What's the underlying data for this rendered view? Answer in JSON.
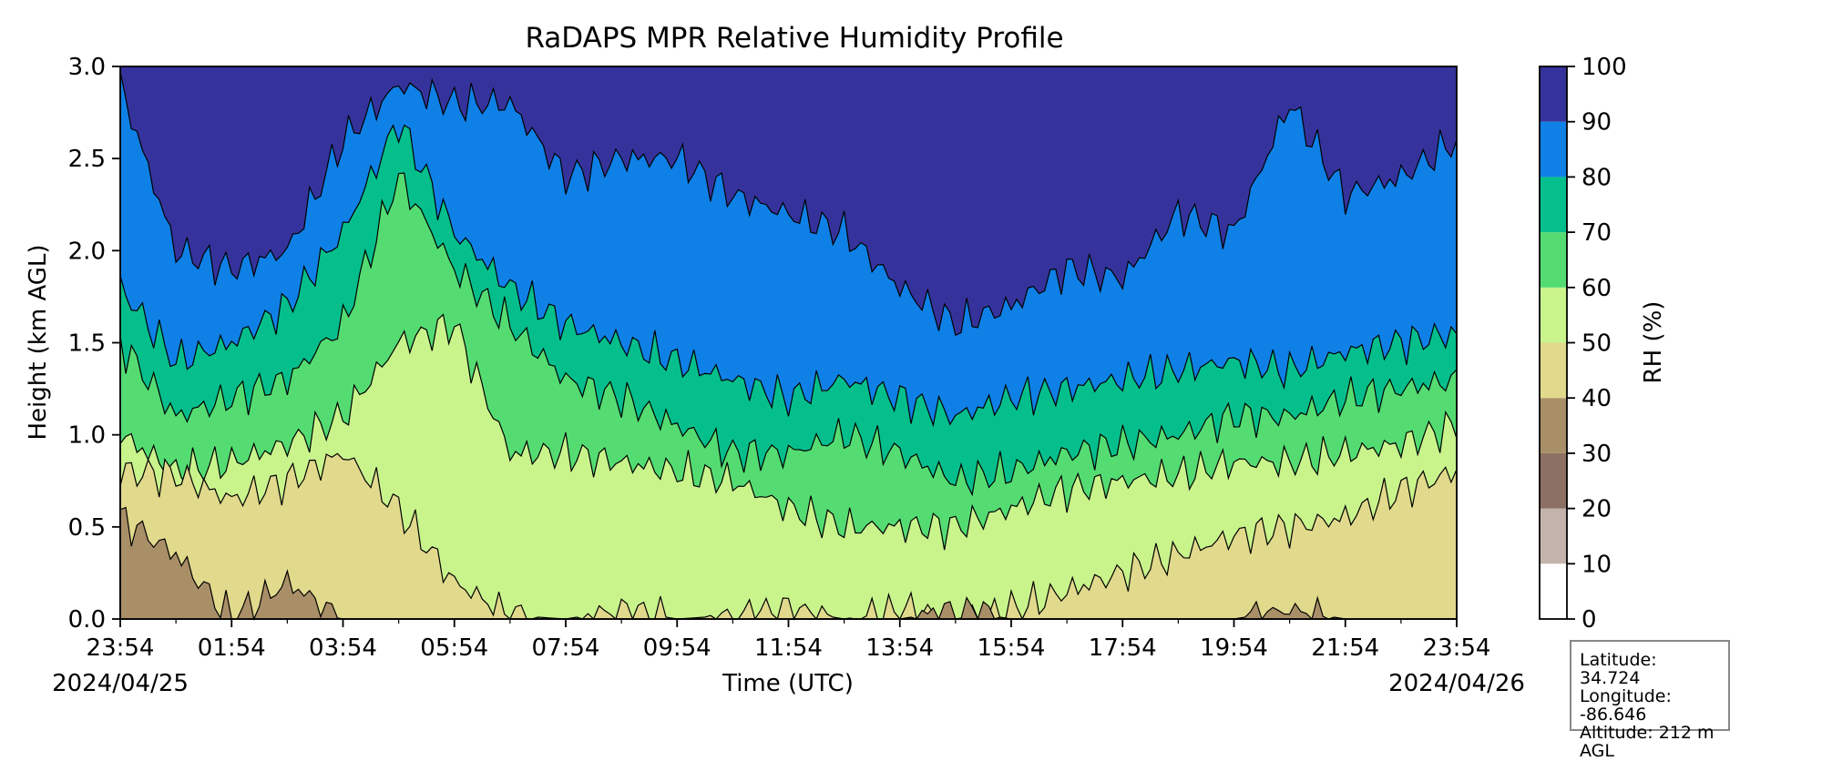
{
  "chart_data": {
    "type": "heatmap",
    "subtype": "filled-contour time-height profile",
    "title": "RaDAPS MPR Relative Humidity Profile",
    "xlabel": "Time (UTC)",
    "ylabel": "Height (km AGL)",
    "x_ticks": [
      "23:54",
      "01:54",
      "03:54",
      "05:54",
      "07:54",
      "09:54",
      "11:54",
      "13:54",
      "15:54",
      "17:54",
      "19:54",
      "21:54",
      "23:54"
    ],
    "x_start_date": "2024/04/25",
    "x_end_date": "2024/04/26",
    "y_ticks": [
      "0.0",
      "0.5",
      "1.0",
      "1.5",
      "2.0",
      "2.5",
      "3.0"
    ],
    "ylim": [
      0,
      3
    ],
    "colorbar": {
      "label": "RH (%)",
      "levels": [
        0,
        10,
        20,
        30,
        40,
        50,
        60,
        70,
        80,
        90,
        100
      ],
      "tick_labels": [
        "0",
        "10",
        "20",
        "30",
        "40",
        "50",
        "60",
        "70",
        "80",
        "90",
        "100"
      ],
      "colors": [
        "#ffffff",
        "#c4b3ac",
        "#8d7064",
        "#a98f68",
        "#e1d98c",
        "#c9f48c",
        "#54dc72",
        "#04bf8c",
        "#0f80e6",
        "#35339b"
      ]
    },
    "approx_contour_heights_km": {
      "x_hours": [
        0,
        1,
        2,
        3,
        4,
        5,
        6,
        7,
        8,
        9,
        10,
        11,
        12,
        13,
        14,
        15,
        16,
        17,
        18,
        19,
        20,
        21,
        22,
        23,
        24
      ],
      "rh_40": [
        0.55,
        0.35,
        0.0,
        0.2,
        0.0,
        0.0,
        0.0,
        0.0,
        0.0,
        0.0,
        0.0,
        0.0,
        0.0,
        0.0,
        0.0,
        0.05,
        0.0,
        0.0,
        0.0,
        0.0,
        0.0,
        0.05,
        0.0,
        0.0,
        0.0
      ],
      "rh_50": [
        0.8,
        0.78,
        0.65,
        0.75,
        0.9,
        0.6,
        0.2,
        0.02,
        0.0,
        0.05,
        0.0,
        0.02,
        0.05,
        0.0,
        0.05,
        0.0,
        0.05,
        0.15,
        0.25,
        0.35,
        0.45,
        0.5,
        0.55,
        0.7,
        0.8
      ],
      "rh_60": [
        1.0,
        0.8,
        0.85,
        0.95,
        1.1,
        1.5,
        1.6,
        0.9,
        0.9,
        0.85,
        0.8,
        0.75,
        0.6,
        0.5,
        0.5,
        0.5,
        0.6,
        0.7,
        0.75,
        0.78,
        0.85,
        0.85,
        0.9,
        0.95,
        1.05
      ],
      "rh_70": [
        1.5,
        1.1,
        1.2,
        1.3,
        1.6,
        2.4,
        1.9,
        1.6,
        1.3,
        1.2,
        1.05,
        0.9,
        0.9,
        1.0,
        0.9,
        0.75,
        0.8,
        0.9,
        0.95,
        1.0,
        1.1,
        1.1,
        1.2,
        1.25,
        1.3
      ],
      "rh_80": [
        1.8,
        1.4,
        1.5,
        1.7,
        2.1,
        2.7,
        2.1,
        1.8,
        1.6,
        1.5,
        1.4,
        1.3,
        1.2,
        1.3,
        1.2,
        1.1,
        1.2,
        1.25,
        1.3,
        1.35,
        1.4,
        1.35,
        1.45,
        1.5,
        1.55
      ],
      "rh_90": [
        2.9,
        2.0,
        1.9,
        2.0,
        2.6,
        2.9,
        2.8,
        2.8,
        2.4,
        2.5,
        2.5,
        2.3,
        2.2,
        2.1,
        1.8,
        1.6,
        1.7,
        1.9,
        1.85,
        2.2,
        2.1,
        2.8,
        2.3,
        2.4,
        2.6
      ]
    }
  },
  "station_info": {
    "latitude": "Latitude: 34.724",
    "longitude": "Longitude: -86.646",
    "altitude": "Altitude: 212 m AGL"
  }
}
